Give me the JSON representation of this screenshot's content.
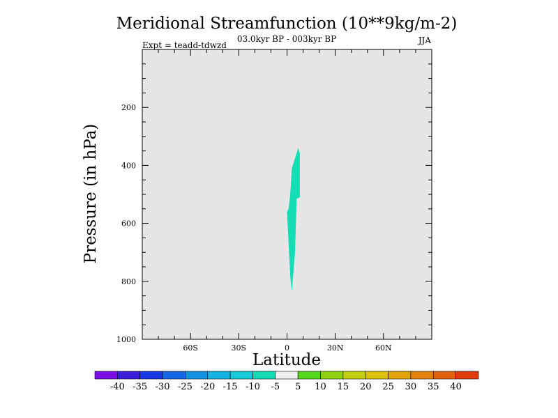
{
  "chart_data": {
    "type": "contour",
    "title": "Meridional Streamfunction (10**9kg/m-2)",
    "period": "03.0kyr BP - 003kyr BP",
    "experiment": "Expt = teadd-tdwzd",
    "season": "JJA",
    "xlabel": "Latitude",
    "ylabel": "Pressure (in hPa)",
    "xlim": [
      -90,
      90
    ],
    "ylim": [
      1000,
      0
    ],
    "background_color": "#e6e6e6",
    "x_ticks": [
      {
        "value": -60,
        "label": "60S"
      },
      {
        "value": -30,
        "label": "30S"
      },
      {
        "value": 0,
        "label": "0"
      },
      {
        "value": 30,
        "label": "30N"
      },
      {
        "value": 60,
        "label": "60N"
      }
    ],
    "y_ticks": [
      {
        "value": 200,
        "label": "200"
      },
      {
        "value": 400,
        "label": "400"
      },
      {
        "value": 600,
        "label": "600"
      },
      {
        "value": 800,
        "label": "800"
      },
      {
        "value": 1000,
        "label": "1000"
      }
    ],
    "filled_region": {
      "level_range": [
        -10,
        -5
      ],
      "color": "#16dcb6",
      "polygon": [
        [
          3,
          410
        ],
        [
          7,
          340
        ],
        [
          8,
          360
        ],
        [
          8,
          510
        ],
        [
          6,
          515
        ],
        [
          5,
          700
        ],
        [
          3,
          835
        ],
        [
          2,
          780
        ],
        [
          0,
          560
        ],
        [
          1,
          550
        ],
        [
          2,
          500
        ]
      ]
    },
    "colorbar": {
      "levels": [
        -45,
        -40,
        -35,
        -30,
        -25,
        -20,
        -15,
        -10,
        -5,
        5,
        10,
        15,
        20,
        25,
        30,
        35,
        40,
        45
      ],
      "tick_labels": [
        "-40",
        "-35",
        "-30",
        "-25",
        "-20",
        "-15",
        "-10",
        "-5",
        "5",
        "10",
        "15",
        "20",
        "25",
        "30",
        "35",
        "40"
      ],
      "colors": [
        "#7a10e6",
        "#3a1fd8",
        "#1a37e4",
        "#1668e4",
        "#1593e2",
        "#17b2e0",
        "#18cbd6",
        "#16dcb6",
        "#efefef",
        "#56d81e",
        "#8fd214",
        "#c2d00f",
        "#dcc20d",
        "#e2a40c",
        "#e3830d",
        "#e4610d",
        "#e13d0c"
      ]
    }
  }
}
